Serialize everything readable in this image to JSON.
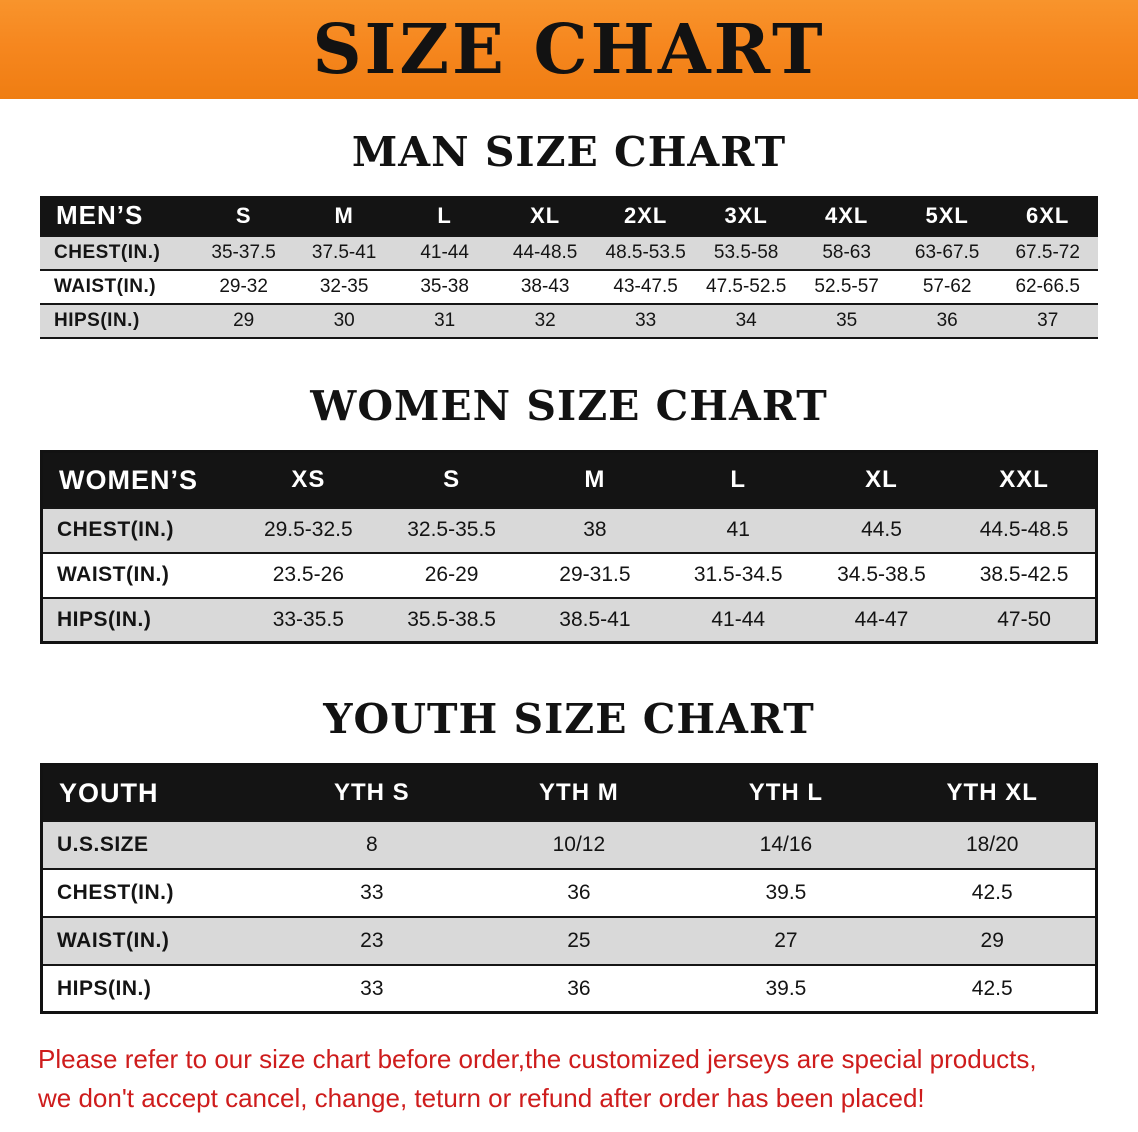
{
  "banner": {
    "title": "SIZE CHART"
  },
  "colors": {
    "banner-bg": "#f6871f",
    "header-bg": "#141414",
    "stripe": "#d9d9d9",
    "warning-red": "#ce1c1c"
  },
  "sections": [
    {
      "heading": "MAN SIZE CHART",
      "table": {
        "header": [
          "MEN’S",
          "S",
          "M",
          "L",
          "XL",
          "2XL",
          "3XL",
          "4XL",
          "5XL",
          "6XL"
        ],
        "rows": [
          [
            "CHEST(IN.)",
            "35-37.5",
            "37.5-41",
            "41-44",
            "44-48.5",
            "48.5-53.5",
            "53.5-58",
            "58-63",
            "63-67.5",
            "67.5-72"
          ],
          [
            "WAIST(IN.)",
            "29-32",
            "32-35",
            "35-38",
            "38-43",
            "43-47.5",
            "47.5-52.5",
            "52.5-57",
            "57-62",
            "62-66.5"
          ],
          [
            "HIPS(IN.)",
            "29",
            "30",
            "31",
            "32",
            "33",
            "34",
            "35",
            "36",
            "37"
          ]
        ]
      }
    },
    {
      "heading": "WOMEN SIZE CHART",
      "table": {
        "header": [
          "WOMEN’S",
          "XS",
          "S",
          "M",
          "L",
          "XL",
          "XXL"
        ],
        "rows": [
          [
            "CHEST(IN.)",
            "29.5-32.5",
            "32.5-35.5",
            "38",
            "41",
            "44.5",
            "44.5-48.5"
          ],
          [
            "WAIST(IN.)",
            "23.5-26",
            "26-29",
            "29-31.5",
            "31.5-34.5",
            "34.5-38.5",
            "38.5-42.5"
          ],
          [
            "HIPS(IN.)",
            "33-35.5",
            "35.5-38.5",
            "38.5-41",
            "41-44",
            "44-47",
            "47-50"
          ]
        ]
      }
    },
    {
      "heading": "YOUTH SIZE CHART",
      "table": {
        "header": [
          "YOUTH",
          "YTH S",
          "YTH M",
          "YTH L",
          "YTH XL"
        ],
        "rows": [
          [
            "U.S.SIZE",
            "8",
            "10/12",
            "14/16",
            "18/20"
          ],
          [
            "CHEST(IN.)",
            "33",
            "36",
            "39.5",
            "42.5"
          ],
          [
            "WAIST(IN.)",
            "23",
            "25",
            "27",
            "29"
          ],
          [
            "HIPS(IN.)",
            "33",
            "36",
            "39.5",
            "42.5"
          ]
        ]
      }
    }
  ],
  "disclaimer": {
    "line1": "Please refer to our size chart before order,the customized jerseys are special products,",
    "line2": "we don't accept cancel, change, teturn or refund after order has been placed!"
  }
}
